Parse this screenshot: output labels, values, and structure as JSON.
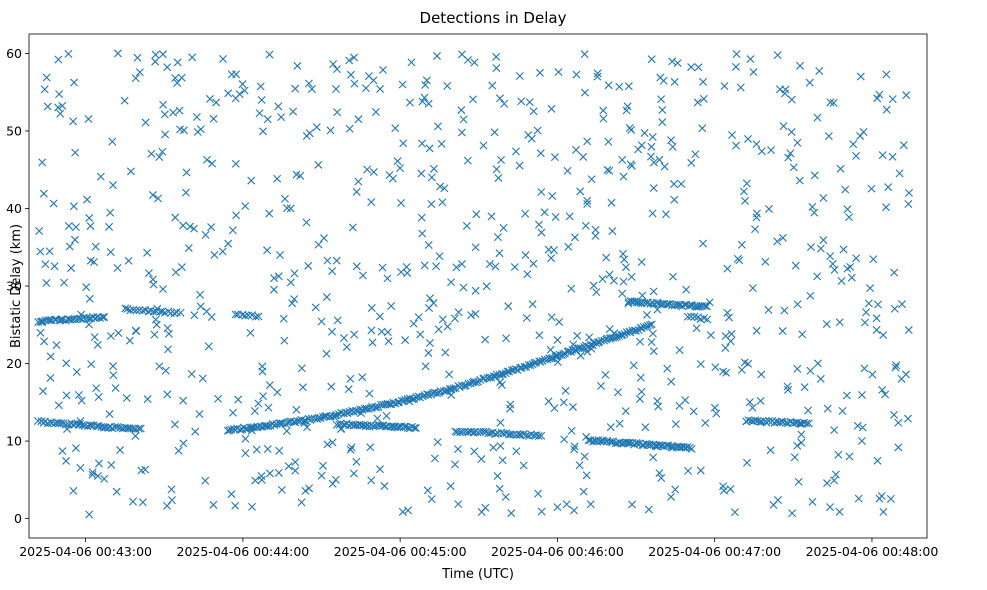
{
  "chart_data": {
    "type": "scatter",
    "title": "Detections in Delay",
    "xlabel": "Time (UTC)",
    "ylabel": "Bistatic Delay (km)",
    "marker": "x",
    "color": "#1f77b4",
    "x_unit": "minutes since 2025-04-06 00:43:00",
    "xlim": [
      -0.36,
      5.35
    ],
    "ylim": [
      -2.5,
      62.5
    ],
    "x_ticks": [
      {
        "value": 0,
        "label": "2025-04-06 00:43:00"
      },
      {
        "value": 1,
        "label": "2025-04-06 00:44:00"
      },
      {
        "value": 2,
        "label": "2025-04-06 00:45:00"
      },
      {
        "value": 3,
        "label": "2025-04-06 00:46:00"
      },
      {
        "value": 4,
        "label": "2025-04-06 00:47:00"
      },
      {
        "value": 5,
        "label": "2025-04-06 00:48:00"
      }
    ],
    "y_ticks": [
      {
        "value": 0,
        "label": "0"
      },
      {
        "value": 10,
        "label": "10"
      },
      {
        "value": 20,
        "label": "20"
      },
      {
        "value": 30,
        "label": "30"
      },
      {
        "value": 40,
        "label": "40"
      },
      {
        "value": 50,
        "label": "50"
      },
      {
        "value": 60,
        "label": "60"
      }
    ],
    "noise": {
      "description": "uniform random false detections",
      "count": 850,
      "x_range": [
        -0.3,
        5.25
      ],
      "y_range": [
        0.5,
        60
      ]
    },
    "tracks": [
      {
        "name": "track-1",
        "x_start": -0.3,
        "x_end": 0.12,
        "y_start": 25.4,
        "y_end": 26.0,
        "count": 30
      },
      {
        "name": "track-2",
        "x_start": -0.3,
        "x_end": 0.35,
        "y_start": 12.5,
        "y_end": 11.5,
        "count": 45
      },
      {
        "name": "track-3",
        "x_start": 0.25,
        "x_end": 0.6,
        "y_start": 27.0,
        "y_end": 26.5,
        "count": 20
      },
      {
        "name": "track-4",
        "x_start": 0.95,
        "x_end": 1.1,
        "y_start": 26.3,
        "y_end": 26.1,
        "count": 8
      },
      {
        "name": "track-5",
        "x_start": 0.9,
        "x_end": 3.0,
        "y_start": 11.4,
        "y_end": 21.0,
        "curve": "quadratic",
        "count": 160
      },
      {
        "name": "track-6",
        "x_start": 3.0,
        "x_end": 3.6,
        "y_start": 21.0,
        "y_end": 25.0,
        "count": 50
      },
      {
        "name": "track-7",
        "x_start": 1.6,
        "x_end": 2.1,
        "y_start": 12.2,
        "y_end": 11.7,
        "count": 40
      },
      {
        "name": "track-8",
        "x_start": 2.35,
        "x_end": 2.9,
        "y_start": 11.3,
        "y_end": 10.7,
        "count": 35
      },
      {
        "name": "track-9",
        "x_start": 3.2,
        "x_end": 3.85,
        "y_start": 10.1,
        "y_end": 9.1,
        "count": 55
      },
      {
        "name": "track-10",
        "x_start": 3.45,
        "x_end": 3.95,
        "y_start": 28.0,
        "y_end": 27.3,
        "count": 40
      },
      {
        "name": "track-11",
        "x_start": 3.85,
        "x_end": 3.95,
        "y_start": 26.0,
        "y_end": 25.7,
        "count": 6
      },
      {
        "name": "track-12",
        "x_start": 4.2,
        "x_end": 4.6,
        "y_start": 12.6,
        "y_end": 12.3,
        "count": 28
      }
    ]
  }
}
